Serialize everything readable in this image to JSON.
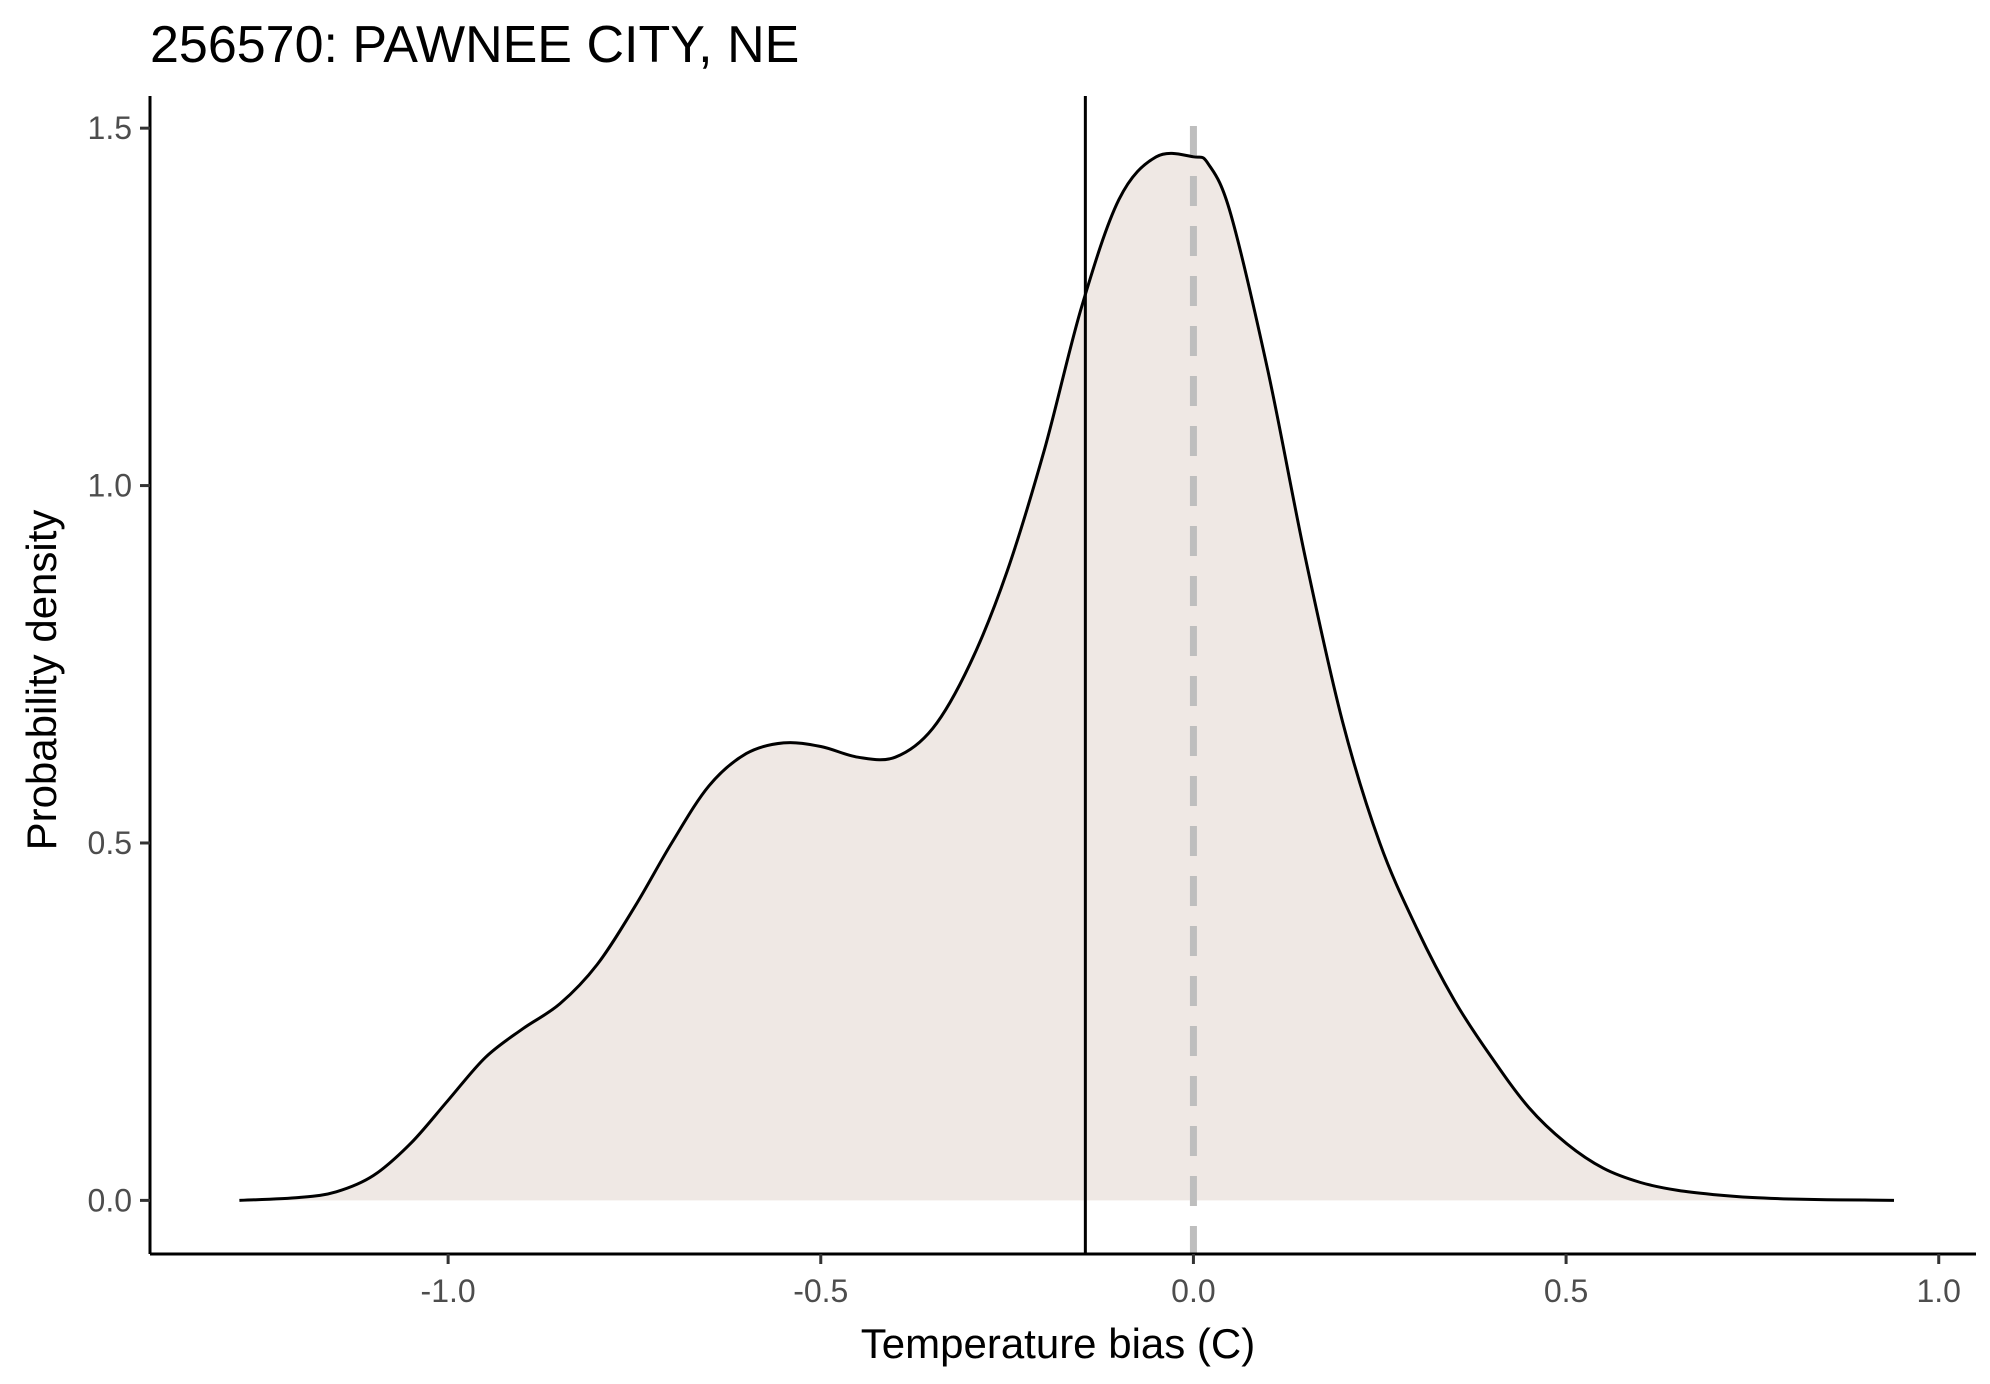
{
  "chart_data": {
    "type": "area",
    "title": "256570: PAWNEE CITY, NE",
    "xlabel": "Temperature bias (C)",
    "ylabel": "Probability density",
    "xlim": [
      -1.4,
      1.05
    ],
    "ylim": [
      -0.075,
      1.545
    ],
    "x_ticks": [
      -1.0,
      -0.5,
      0.0,
      0.5,
      1.0
    ],
    "x_tick_labels": [
      "-1.0",
      "-0.5",
      "0.0",
      "0.5",
      "1.0"
    ],
    "y_ticks": [
      0.0,
      0.5,
      1.0,
      1.5
    ],
    "y_tick_labels": [
      "0.0",
      "0.5",
      "1.0",
      "1.5"
    ],
    "grid": false,
    "fill_color": "#efe8e4",
    "line_color": "#000000",
    "reference_lines": [
      {
        "x": -0.145,
        "style": "solid",
        "color": "#000000"
      },
      {
        "x": 0.0,
        "style": "dashed",
        "color": "#bebebe"
      }
    ],
    "series": [
      {
        "x": [
          -1.28,
          -1.2,
          -1.15,
          -1.1,
          -1.05,
          -1.0,
          -0.95,
          -0.9,
          -0.85,
          -0.8,
          -0.75,
          -0.7,
          -0.65,
          -0.6,
          -0.55,
          -0.5,
          -0.45,
          -0.4,
          -0.35,
          -0.3,
          -0.25,
          -0.2,
          -0.15,
          -0.1,
          -0.05,
          0.0,
          0.02,
          0.05,
          0.1,
          0.15,
          0.2,
          0.25,
          0.3,
          0.35,
          0.4,
          0.45,
          0.5,
          0.55,
          0.6,
          0.65,
          0.7,
          0.75,
          0.8,
          0.85,
          0.9,
          0.94
        ],
        "y": [
          0.0,
          0.004,
          0.012,
          0.035,
          0.08,
          0.14,
          0.2,
          0.24,
          0.275,
          0.33,
          0.41,
          0.5,
          0.58,
          0.625,
          0.64,
          0.635,
          0.62,
          0.62,
          0.66,
          0.75,
          0.88,
          1.05,
          1.25,
          1.4,
          1.46,
          1.46,
          1.45,
          1.38,
          1.16,
          0.9,
          0.67,
          0.5,
          0.38,
          0.28,
          0.2,
          0.13,
          0.08,
          0.045,
          0.025,
          0.014,
          0.008,
          0.004,
          0.002,
          0.001,
          0.0005,
          0.0
        ]
      }
    ]
  }
}
